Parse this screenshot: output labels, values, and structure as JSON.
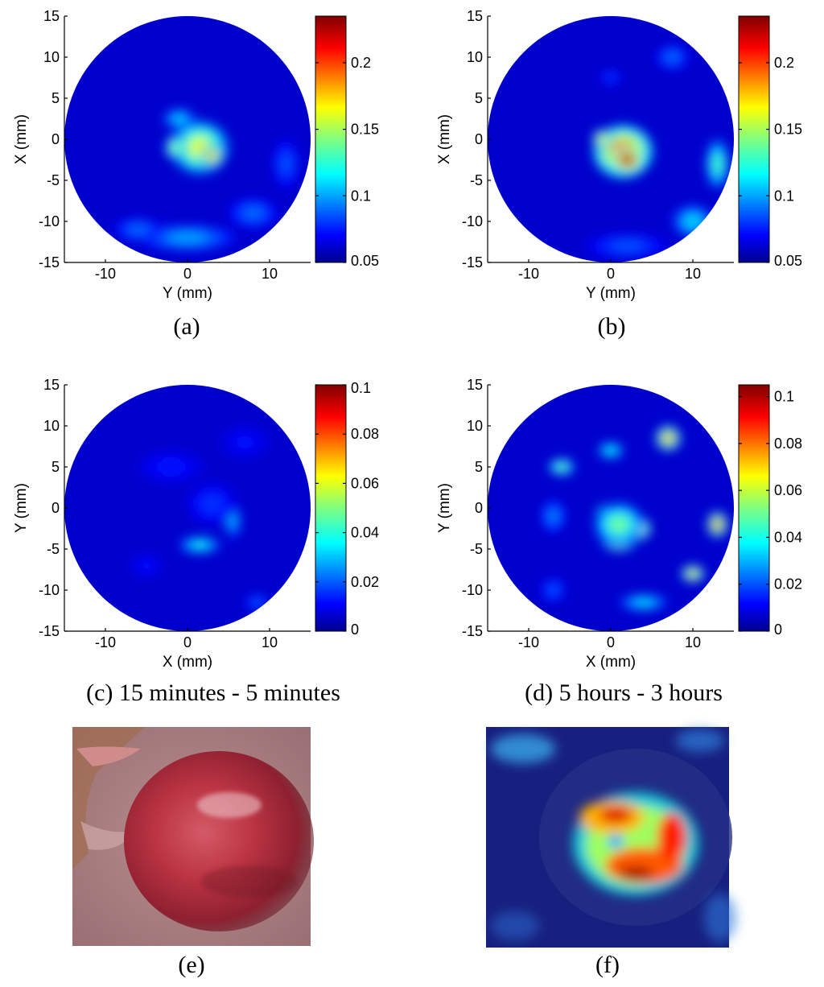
{
  "chart_data": [
    {
      "type": "heatmap",
      "caption": "(a)",
      "xlabel": "Y (mm)",
      "ylabel": "X (mm)",
      "xlim": [
        -15,
        15
      ],
      "ylim": [
        -15,
        15
      ],
      "xticks": [
        "-10",
        "0",
        "10"
      ],
      "yticks": [
        "15",
        "10",
        "5",
        "0",
        "-5",
        "-10",
        "-15"
      ],
      "colorbar": {
        "min": 0.05,
        "max": 0.235,
        "ticks": [
          "0.2",
          "0.15",
          "0.1",
          "0.05"
        ],
        "tick_values": [
          0.2,
          0.15,
          0.1,
          0.05
        ]
      },
      "blobs": [
        {
          "x": 1.5,
          "y": -1,
          "value": 0.16,
          "sx": 3.5,
          "sy": 3.2
        },
        {
          "x": 3,
          "y": -2,
          "value": 0.18,
          "sx": 1.4,
          "sy": 1.4
        },
        {
          "x": -1.5,
          "y": -1,
          "value": 0.15,
          "sx": 1.2,
          "sy": 1.5
        },
        {
          "x": -1,
          "y": 2.5,
          "value": 0.11,
          "sx": 2,
          "sy": 1.2
        },
        {
          "x": 0,
          "y": -12,
          "value": 0.1,
          "sx": 6,
          "sy": 1.6
        },
        {
          "x": -6,
          "y": -11,
          "value": 0.09,
          "sx": 3,
          "sy": 1.4
        },
        {
          "x": 8,
          "y": -9,
          "value": 0.09,
          "sx": 3,
          "sy": 1.8
        },
        {
          "x": 12,
          "y": -3,
          "value": 0.085,
          "sx": 1.6,
          "sy": 3
        }
      ]
    },
    {
      "type": "heatmap",
      "caption": "(b)",
      "xlabel": "Y (mm)",
      "ylabel": "X (mm)",
      "xlim": [
        -15,
        15
      ],
      "ylim": [
        -15,
        15
      ],
      "xticks": [
        "-10",
        "0",
        "10"
      ],
      "yticks": [
        "15",
        "10",
        "5",
        "0",
        "-5",
        "-10",
        "-15"
      ],
      "colorbar": {
        "min": 0.05,
        "max": 0.235,
        "ticks": [
          "0.2",
          "0.15",
          "0.1",
          "0.05"
        ],
        "tick_values": [
          0.2,
          0.15,
          0.1,
          0.05
        ]
      },
      "blobs": [
        {
          "x": 1.5,
          "y": -1.5,
          "value": 0.2,
          "sx": 3.6,
          "sy": 3.2
        },
        {
          "x": 2,
          "y": -2.5,
          "value": 0.24,
          "sx": 2,
          "sy": 1.6
        },
        {
          "x": -1,
          "y": 0,
          "value": 0.17,
          "sx": 1.2,
          "sy": 1.2
        },
        {
          "x": 0,
          "y": 7.5,
          "value": 0.08,
          "sx": 1.5,
          "sy": 1
        },
        {
          "x": 7.5,
          "y": 10,
          "value": 0.09,
          "sx": 2,
          "sy": 1.5
        },
        {
          "x": 13,
          "y": -3,
          "value": 0.13,
          "sx": 1.4,
          "sy": 3
        },
        {
          "x": 10,
          "y": -10,
          "value": 0.11,
          "sx": 2.5,
          "sy": 2
        },
        {
          "x": 2,
          "y": -13,
          "value": 0.085,
          "sx": 5,
          "sy": 1.5
        }
      ]
    },
    {
      "type": "heatmap",
      "caption": "(c) 15 minutes - 5 minutes",
      "xlabel": "X (mm)",
      "ylabel": "Y (mm)",
      "xlim": [
        -15,
        15
      ],
      "ylim": [
        -15,
        15
      ],
      "xticks": [
        "-10",
        "0",
        "10"
      ],
      "yticks": [
        "15",
        "10",
        "5",
        "0",
        "-5",
        "-10",
        "-15"
      ],
      "colorbar": {
        "min": 0,
        "max": 0.1,
        "ticks": [
          "0.1",
          "0.08",
          "0.06",
          "0.04",
          "0.02",
          "0"
        ],
        "tick_values": [
          0.1,
          0.08,
          0.06,
          0.04,
          0.02,
          0
        ]
      },
      "blobs": [
        {
          "x": 1.5,
          "y": -4.5,
          "value": 0.038,
          "sx": 2.5,
          "sy": 1
        },
        {
          "x": 5.5,
          "y": -1.5,
          "value": 0.03,
          "sx": 1,
          "sy": 2.2
        },
        {
          "x": 3,
          "y": 0.5,
          "value": 0.016,
          "sx": 3,
          "sy": 2.5
        },
        {
          "x": -2,
          "y": 5,
          "value": 0.013,
          "sx": 4,
          "sy": 2
        },
        {
          "x": 7,
          "y": 8,
          "value": 0.012,
          "sx": 3,
          "sy": 2
        },
        {
          "x": 8.5,
          "y": -11.5,
          "value": 0.02,
          "sx": 1.5,
          "sy": 1
        },
        {
          "x": -5,
          "y": -7,
          "value": 0.012,
          "sx": 2,
          "sy": 1.5
        }
      ]
    },
    {
      "type": "heatmap",
      "caption": "(d) 5 hours - 3 hours",
      "xlabel": "X (mm)",
      "ylabel": "Y (mm)",
      "xlim": [
        -15,
        15
      ],
      "ylim": [
        -15,
        15
      ],
      "xticks": [
        "-10",
        "0",
        "10"
      ],
      "yticks": [
        "15",
        "10",
        "5",
        "0",
        "-5",
        "-10",
        "-15"
      ],
      "colorbar": {
        "min": 0,
        "max": 0.105,
        "ticks": [
          "0.1",
          "0.08",
          "0.06",
          "0.04",
          "0.02",
          "0"
        ],
        "tick_values": [
          0.1,
          0.08,
          0.06,
          0.04,
          0.02,
          0
        ]
      },
      "blobs": [
        {
          "x": -0.5,
          "y": -0.5,
          "value": 0.09,
          "sx": 1.2,
          "sy": 0.8
        },
        {
          "x": 3,
          "y": -2.5,
          "value": 0.095,
          "sx": 1.8,
          "sy": 1.4
        },
        {
          "x": 1,
          "y": -4,
          "value": 0.08,
          "sx": 2,
          "sy": 1.2
        },
        {
          "x": 1,
          "y": -2,
          "value": 0.05,
          "sx": 3,
          "sy": 2.6
        },
        {
          "x": -6,
          "y": 5,
          "value": 0.05,
          "sx": 1.6,
          "sy": 1
        },
        {
          "x": 0,
          "y": 7,
          "value": 0.04,
          "sx": 1.6,
          "sy": 1
        },
        {
          "x": 7,
          "y": 8.5,
          "value": 0.075,
          "sx": 1.5,
          "sy": 1.5
        },
        {
          "x": 13,
          "y": -2,
          "value": 0.08,
          "sx": 1.2,
          "sy": 1.5
        },
        {
          "x": 10,
          "y": -8,
          "value": 0.07,
          "sx": 1.4,
          "sy": 1
        },
        {
          "x": 4,
          "y": -11.5,
          "value": 0.035,
          "sx": 3,
          "sy": 1
        },
        {
          "x": -7,
          "y": -1,
          "value": 0.025,
          "sx": 1.5,
          "sy": 2
        },
        {
          "x": -7,
          "y": -10,
          "value": 0.02,
          "sx": 1.5,
          "sy": 1.5
        }
      ]
    }
  ],
  "photos": {
    "e": {
      "caption": "(e)"
    },
    "f": {
      "caption": "(f)"
    }
  },
  "colors": {
    "background": "#ffffff",
    "jet": [
      "#00008f",
      "#0000ff",
      "#0080ff",
      "#00ffff",
      "#80ff80",
      "#ffff00",
      "#ff8000",
      "#ff0000",
      "#800000"
    ]
  }
}
